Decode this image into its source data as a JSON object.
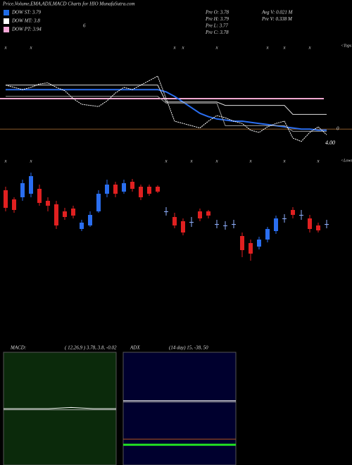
{
  "header": {
    "title": "Price,Volume,EMA,ADX,MACD Charts for HIO MunafaSutra.com",
    "legend": [
      {
        "label": "DOW ST: 3.79",
        "color": "#1e6be6"
      },
      {
        "label": "DOW MT: 3.8",
        "color": "#ffffff"
      },
      {
        "label": "DOW PT: 3.94",
        "color": "#f7a8d8"
      }
    ],
    "note": "6",
    "stats_left": [
      "Pre  O: 3.78",
      "Pre  H: 3.79",
      "Pre  L: 3.77",
      "Pre  C: 3.78"
    ],
    "stats_right": [
      "Avg  V: 0.021 M",
      "Pre  V: 0.338 M"
    ]
  },
  "chart_data": [
    {
      "type": "line",
      "ylim": [
        0,
        100
      ],
      "levels": [
        {
          "value": 50,
          "color": "#f0a8d0"
        },
        {
          "value": 23,
          "color": "#8b5a2b"
        }
      ],
      "annotations": [
        "4.00",
        "0"
      ],
      "series": [
        {
          "color": "#2a6ef0",
          "values": [
            58,
            58,
            58,
            58,
            58,
            58,
            58,
            58,
            58,
            58,
            58,
            58,
            58,
            58,
            58,
            58,
            58,
            58,
            58,
            56,
            52,
            47,
            42,
            37,
            34,
            32,
            31,
            30,
            30,
            29,
            28,
            27,
            26,
            25,
            24,
            23,
            23,
            22,
            22
          ]
        },
        {
          "color": "#e0e0e0",
          "values": [
            62,
            62,
            62,
            62,
            62,
            62,
            62,
            62,
            62,
            62,
            62,
            62,
            62,
            62,
            62,
            62,
            62,
            62,
            62,
            47,
            47,
            47,
            47,
            47,
            47,
            47,
            44,
            44,
            44,
            44,
            44,
            44,
            44,
            44,
            36,
            36,
            36,
            36,
            36
          ]
        },
        {
          "color": "#999999",
          "values": [
            52,
            52,
            52,
            52,
            52,
            52,
            52,
            52,
            52,
            52,
            52,
            52,
            52,
            52,
            52,
            52,
            52,
            52,
            52,
            46,
            46,
            46,
            46,
            46,
            46,
            46,
            26,
            26,
            26,
            26,
            26,
            26,
            26,
            26,
            21,
            21,
            21,
            21,
            21
          ]
        },
        {
          "color": "#ffffff",
          "values": [
            62,
            60,
            58,
            60,
            63,
            64,
            60,
            57,
            50,
            45,
            44,
            43,
            48,
            55,
            60,
            58,
            62,
            66,
            70,
            50,
            30,
            28,
            26,
            24,
            30,
            35,
            33,
            30,
            28,
            22,
            20,
            25,
            28,
            30,
            15,
            12,
            20,
            25,
            18
          ]
        }
      ]
    },
    {
      "type": "candlestick",
      "ylim": [
        0,
        140
      ],
      "up_color": "#2a6ef0",
      "down_color": "#e02020",
      "marker": "x",
      "tops_label": "<Tops",
      "lows_label": "<Lows",
      "tops": [
        0,
        3,
        20,
        21,
        25,
        31,
        33,
        36
      ],
      "lows": [
        0,
        3,
        19,
        22,
        25,
        29,
        33,
        37
      ],
      "open": [
        110,
        97,
        100,
        105,
        112,
        95,
        90,
        80,
        84,
        55,
        60,
        80,
        105,
        118,
        108,
        122,
        115,
        115,
        115,
        80,
        72,
        66,
        65,
        80,
        80,
        62,
        60,
        62,
        45,
        35,
        30,
        40,
        52,
        70,
        82,
        75,
        70,
        60,
        62
      ],
      "high": [
        115,
        100,
        125,
        135,
        118,
        100,
        95,
        85,
        88,
        68,
        80,
        110,
        125,
        122,
        125,
        126,
        118,
        118,
        117,
        86,
        78,
        70,
        72,
        84,
        82,
        68,
        66,
        68,
        50,
        40,
        44,
        58,
        74,
        76,
        86,
        82,
        75,
        64,
        68
      ],
      "low": [
        80,
        78,
        95,
        100,
        88,
        80,
        55,
        68,
        70,
        52,
        58,
        78,
        100,
        100,
        105,
        108,
        96,
        102,
        106,
        74,
        56,
        46,
        58,
        66,
        70,
        56,
        54,
        56,
        15,
        10,
        26,
        36,
        48,
        64,
        70,
        68,
        50,
        50,
        56
      ],
      "close": [
        85,
        82,
        120,
        130,
        92,
        88,
        60,
        72,
        74,
        64,
        75,
        105,
        118,
        105,
        120,
        112,
        100,
        105,
        108,
        80,
        60,
        50,
        65,
        70,
        74,
        62,
        60,
        62,
        25,
        20,
        40,
        55,
        70,
        70,
        75,
        75,
        55,
        53,
        62
      ]
    },
    {
      "type": "line",
      "title": "MACD:",
      "subtitle": "( 12,26,9 ) 3.78, 3.8, -0.02",
      "ylim": [
        0,
        100
      ],
      "background": "#0b2a0b",
      "series": [
        {
          "color": "#ffffff",
          "values": [
            50,
            50,
            50,
            51,
            50,
            50
          ]
        },
        {
          "color": "#aaaaaa",
          "values": [
            49,
            49,
            49,
            49,
            49,
            49
          ]
        }
      ]
    },
    {
      "type": "line",
      "title": "ADX",
      "subtitle": "(14 day) 15, -38, 50",
      "ylim": [
        0,
        100
      ],
      "background": "#00002e",
      "series": [
        {
          "color": "#ffffff",
          "values": [
            57,
            57,
            57,
            57,
            57,
            57
          ]
        },
        {
          "color": "#aaaaaa",
          "values": [
            56,
            56,
            56,
            56,
            56,
            56
          ]
        },
        {
          "color": "#b0541c",
          "values": [
            23,
            23,
            23,
            23,
            23,
            23
          ]
        },
        {
          "color": "#22dd22",
          "values": [
            18,
            18,
            18,
            18,
            18,
            18
          ]
        }
      ]
    }
  ]
}
